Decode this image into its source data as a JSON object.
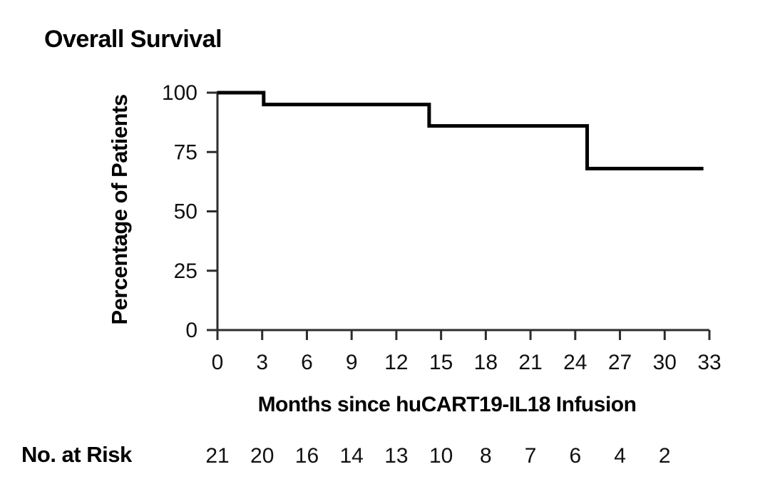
{
  "chart_data": {
    "type": "line",
    "subtype": "kaplan_meier_step",
    "title": "Overall Survival",
    "xlabel": "Months since huCART19-IL18 Infusion",
    "ylabel": "Percentage of Patients",
    "xlim": [
      0,
      33
    ],
    "ylim": [
      0,
      100
    ],
    "x_ticks": [
      0,
      3,
      6,
      9,
      12,
      15,
      18,
      21,
      24,
      27,
      30,
      33
    ],
    "y_ticks": [
      100,
      75,
      50,
      25,
      0
    ],
    "grid": false,
    "legend": false,
    "line_color": "#000000",
    "axis_color": "#2d2d2d",
    "series": [
      {
        "name": "Overall Survival",
        "step_points": [
          {
            "x": 0,
            "y": 100
          },
          {
            "x": 3.1,
            "y": 95
          },
          {
            "x": 14.2,
            "y": 86
          },
          {
            "x": 24.8,
            "y": 68
          }
        ],
        "curve_end_x": 32.6
      }
    ]
  },
  "risk_table": {
    "label": "No. at Risk",
    "months": [
      0,
      3,
      6,
      9,
      12,
      15,
      18,
      21,
      24,
      27,
      30
    ],
    "values": [
      21,
      20,
      16,
      14,
      13,
      10,
      8,
      7,
      6,
      4,
      2
    ]
  }
}
